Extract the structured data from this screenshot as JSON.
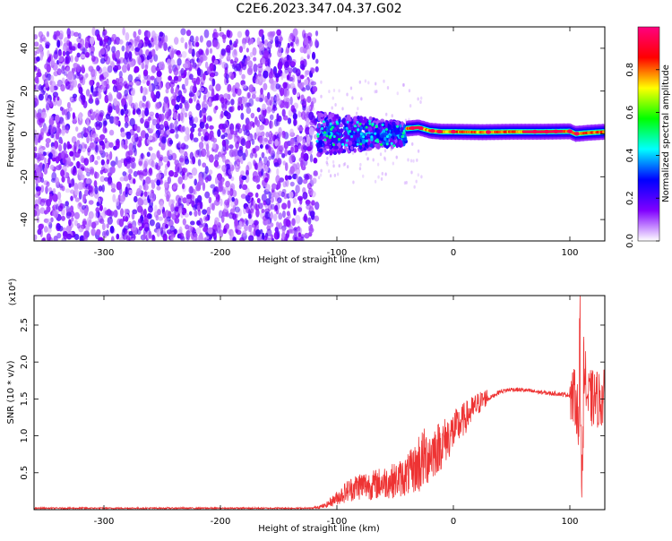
{
  "page_title": "C2E6.2023.347.04.37.G02",
  "chart_data": [
    {
      "type": "heatmap",
      "title": "C2E6.2023.347.04.37.G02",
      "xlabel": "Height of straight line (km)",
      "ylabel": "Frequency (Hz)",
      "xlim": [
        -360,
        130
      ],
      "ylim": [
        -50,
        50
      ],
      "x_ticks": [
        -300,
        -200,
        -100,
        0,
        100
      ],
      "y_ticks": [
        -40,
        -20,
        0,
        20,
        40
      ],
      "colorbar": {
        "label": "Normalized spectral amplitude",
        "range": [
          0,
          1
        ],
        "ticks": [
          0.0,
          0.2,
          0.4,
          0.6,
          0.8
        ],
        "colors": [
          "#ffffff",
          "#8000ff",
          "#0000ff",
          "#00ffff",
          "#00ff00",
          "#ffff00",
          "#ff0000",
          "#ff0080"
        ]
      },
      "regions": [
        {
          "x_range": [
            -360,
            -117
          ],
          "freq_range": [
            -50,
            48
          ],
          "amplitude": "random 0.05-0.2 (noise)"
        },
        {
          "x_range": [
            -117,
            -40
          ],
          "freq_range": [
            -10,
            10
          ],
          "amplitude": "0.2-0.5 (broadband burst)"
        },
        {
          "x_range": [
            -40,
            130
          ],
          "freq_range": [
            -2,
            2
          ],
          "amplitude": "0.6-1.0 (narrow tone near 0 Hz)"
        }
      ],
      "tone_track": [
        {
          "x": -40,
          "f": 2.5
        },
        {
          "x": -30,
          "f": 3
        },
        {
          "x": -20,
          "f": 1.5
        },
        {
          "x": -10,
          "f": 1
        },
        {
          "x": 0,
          "f": 1
        },
        {
          "x": 25,
          "f": 0.8
        },
        {
          "x": 50,
          "f": 1
        },
        {
          "x": 75,
          "f": 1
        },
        {
          "x": 100,
          "f": 1.2
        },
        {
          "x": 105,
          "f": 0
        },
        {
          "x": 115,
          "f": 0.5
        },
        {
          "x": 130,
          "f": 1
        }
      ]
    },
    {
      "type": "line",
      "xlabel": "Height of straight line (km)",
      "ylabel": "SNR (10 * v/v)",
      "y_multiplier_label": "(x10⁴)",
      "xlim": [
        -360,
        130
      ],
      "ylim": [
        0,
        2.9
      ],
      "x_ticks": [
        -300,
        -200,
        -100,
        0,
        100
      ],
      "y_ticks": [
        0.5,
        1.0,
        1.5,
        2.0,
        2.5
      ],
      "y_tick_labels": [
        "0.5",
        "1.0",
        "1.5",
        "2.0",
        "2.5"
      ],
      "line_color": "#ee3333",
      "series": [
        {
          "x": [
            -360,
            -300,
            -200,
            -120,
            -110,
            -100,
            -90,
            -80,
            -70,
            -60,
            -50,
            -40,
            -30,
            -20,
            -10,
            0,
            10,
            20,
            30,
            40,
            50,
            60,
            70,
            80,
            90,
            100,
            105,
            108,
            110,
            112,
            115,
            120,
            130
          ],
          "y": [
            0.02,
            0.02,
            0.02,
            0.02,
            0.04,
            0.12,
            0.2,
            0.25,
            0.25,
            0.28,
            0.3,
            0.35,
            0.45,
            0.6,
            0.75,
            0.95,
            1.15,
            1.35,
            1.5,
            1.6,
            1.63,
            1.62,
            1.6,
            1.58,
            1.57,
            1.55,
            1.5,
            1.2,
            0.9,
            2.0,
            1.5,
            1.5,
            1.5
          ]
        }
      ]
    }
  ]
}
